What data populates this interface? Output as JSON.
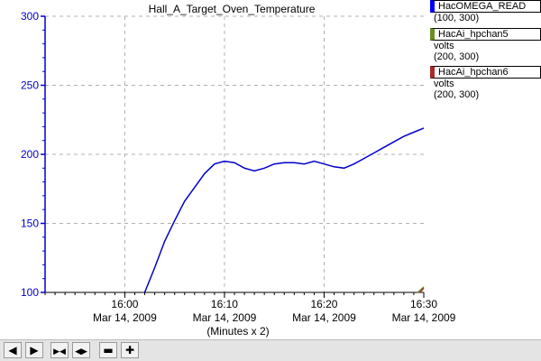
{
  "chart_data": {
    "type": "line",
    "title": "Hall_A_Target_Oven_Temperature",
    "xlabel": "(Minutes x 2)",
    "x_ticks": [
      {
        "x": "16:00",
        "time": "16:00",
        "date": "Mar 14, 2009"
      },
      {
        "x": "16:10",
        "time": "16:10",
        "date": "Mar 14, 2009"
      },
      {
        "x": "16:20",
        "time": "16:20",
        "date": "Mar 14, 2009"
      },
      {
        "x": "16:30",
        "time": "16:30",
        "date": "Mar 14, 2009"
      }
    ],
    "xlim": [
      "15:52",
      "16:30"
    ],
    "y_ticks": [
      "300",
      "250",
      "200",
      "150",
      "100"
    ],
    "ylim": [
      100,
      300
    ],
    "grid": true,
    "axis_color": "#0000cc",
    "series": [
      {
        "name": "HacOMEGA_READ",
        "color": "#0000cc",
        "points": [
          [
            "16:02",
            100
          ],
          [
            "16:03",
            118
          ],
          [
            "16:04",
            137
          ],
          [
            "16:05",
            152
          ],
          [
            "16:06",
            166
          ],
          [
            "16:07",
            176
          ],
          [
            "16:08",
            186
          ],
          [
            "16:09",
            193
          ],
          [
            "16:10",
            195
          ],
          [
            "16:11",
            194
          ],
          [
            "16:12",
            190
          ],
          [
            "16:13",
            188
          ],
          [
            "16:14",
            190
          ],
          [
            "16:15",
            193
          ],
          [
            "16:16",
            194
          ],
          [
            "16:17",
            194
          ],
          [
            "16:18",
            193
          ],
          [
            "16:19",
            195
          ],
          [
            "16:20",
            193
          ],
          [
            "16:21",
            191
          ],
          [
            "16:22",
            190
          ],
          [
            "16:23",
            193
          ],
          [
            "16:24",
            197
          ],
          [
            "16:25",
            201
          ],
          [
            "16:26",
            205
          ],
          [
            "16:27",
            209
          ],
          [
            "16:28",
            213
          ],
          [
            "16:29",
            216
          ],
          [
            "16:30",
            219
          ]
        ]
      },
      {
        "name": "HacAi_hpchan5",
        "color": "#6b8e23",
        "points": [
          [
            "16:29.4",
            100
          ],
          [
            "16:30",
            104
          ]
        ]
      },
      {
        "name": "HacAi_hpchan6",
        "color": "#a52a2a",
        "points": [
          [
            "16:29.6",
            100
          ],
          [
            "16:30",
            103
          ]
        ]
      }
    ]
  },
  "legend": [
    {
      "label": "HacOMEGA_READ",
      "unit": "",
      "range": "(100, 300)",
      "color": "#0000ff"
    },
    {
      "label": "HacAi_hpchan5",
      "unit": "volts",
      "range": "(200, 300)",
      "color": "#6b8e23"
    },
    {
      "label": "HacAi_hpchan6",
      "unit": "volts",
      "range": "(200, 300)",
      "color": "#a52a2a"
    }
  ],
  "toolbar": [
    {
      "name": "pan-left-button",
      "icon": "arrow-left-icon",
      "glyph": "◀"
    },
    {
      "name": "pan-right-button",
      "icon": "arrow-right-icon",
      "glyph": "▶"
    },
    {
      "name": "zoom-in-time-button",
      "icon": "zoom-in-time-icon",
      "glyph": "▶◀"
    },
    {
      "name": "zoom-out-time-button",
      "icon": "zoom-out-time-icon",
      "glyph": "◀▶"
    },
    {
      "name": "remove-trace-button",
      "icon": "minus-icon",
      "glyph": "▬"
    },
    {
      "name": "add-trace-button",
      "icon": "plus-icon",
      "glyph": "✚"
    }
  ]
}
